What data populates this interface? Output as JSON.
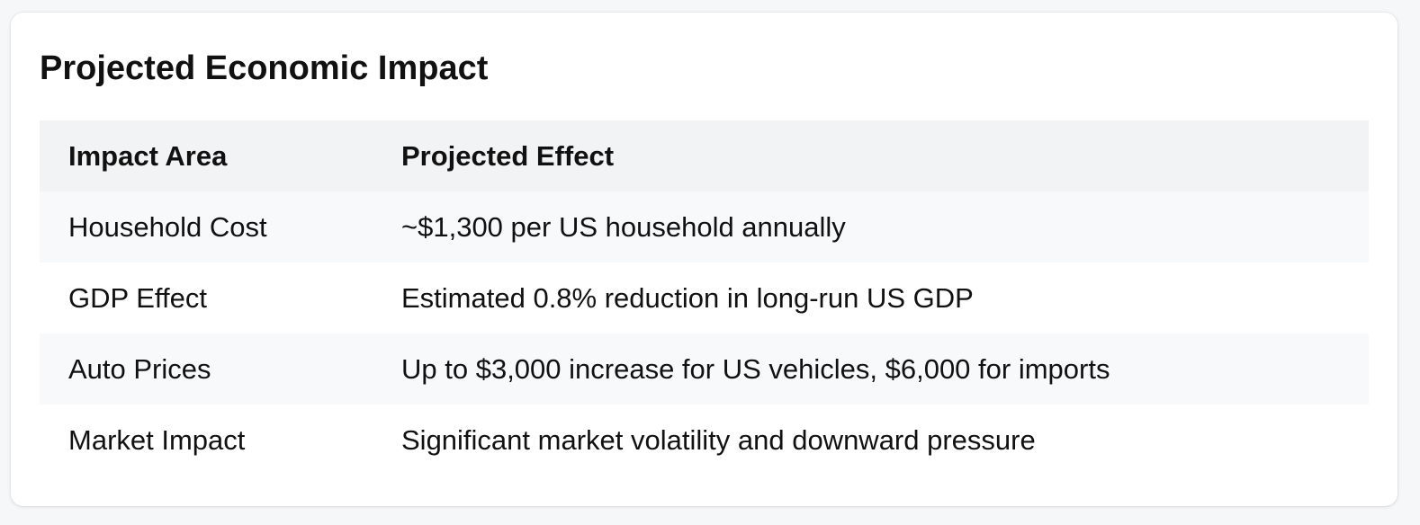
{
  "card": {
    "title": "Projected Economic Impact"
  },
  "table": {
    "columns": [
      "Impact Area",
      "Projected Effect"
    ],
    "rows": [
      {
        "area": "Household Cost",
        "effect": "~$1,300 per US household annually"
      },
      {
        "area": "GDP Effect",
        "effect": "Estimated 0.8% reduction in long-run US GDP"
      },
      {
        "area": "Auto Prices",
        "effect": "Up to $3,000 increase for US vehicles, $6,000 for imports"
      },
      {
        "area": "Market Impact",
        "effect": "Significant market volatility and downward pressure"
      }
    ]
  },
  "colors": {
    "page_background": "#f6f7f9",
    "card_background": "#ffffff",
    "header_background": "#f2f3f5",
    "striped_row_background": "#f8f9fb",
    "text": "#111111"
  }
}
